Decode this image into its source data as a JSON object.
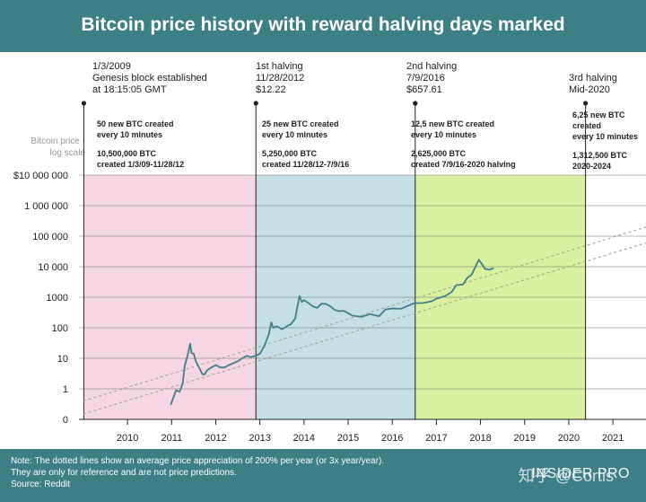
{
  "header": {
    "title": "Bitcoin price history with reward halving days marked"
  },
  "y_axis_note": {
    "line1": "Bitcoin price -",
    "line2": "log scale"
  },
  "events": [
    {
      "lines": [
        "1/3/2009",
        "Genesis block established",
        "at 18:15:05 GMT"
      ]
    },
    {
      "lines": [
        "1st halving",
        "11/28/2012",
        "$12.22"
      ]
    },
    {
      "lines": [
        "2nd halving",
        "7/9/2016",
        "$657.61"
      ]
    },
    {
      "lines": [
        "3rd halving",
        "Mid-2020"
      ]
    }
  ],
  "periods": [
    {
      "info": [
        "50 new BTC created",
        "every 10 minutes"
      ],
      "info2": [
        "10,500,000 BTC",
        "created 1/3/09-11/28/12"
      ],
      "color": "#f6d6e2"
    },
    {
      "info": [
        "25 new BTC created",
        "every 10 minutes"
      ],
      "info2": [
        "5,250,000 BTC",
        "created 11/28/12-7/9/16"
      ],
      "color": "#c5dfe6"
    },
    {
      "info": [
        "12,5 new BTC created",
        "every 10 minutes"
      ],
      "info2": [
        "2,625,000 BTC",
        "created 7/9/16-2020 halving"
      ],
      "color": "#d9f0a0"
    },
    {
      "info": [
        "6,25 new BTC",
        "created",
        "every 10 minutes"
      ],
      "info2": [
        "1,312,500 BTC",
        "2020-2024"
      ],
      "color": "#ffffff"
    }
  ],
  "footer": {
    "note1": "Note: The dotted lines show an average price appreciation of 200% per year (or 3x year/year).",
    "note2": "They are only for reference and are not price predictions.",
    "source": "Source: Reddit",
    "brand": "INSIDER PRO",
    "watermark": "知乎 @Cortis"
  },
  "colors": {
    "header": "#3d7f86",
    "price_line": "#3f7f86",
    "trend_line": "#9aa88a"
  },
  "chart_data": {
    "type": "line",
    "title": "Bitcoin price history with reward halving days marked",
    "ylabel": "Bitcoin price - log scale",
    "y_scale": "log",
    "yticks": [
      {
        "value": 0,
        "label": "0"
      },
      {
        "value": 1,
        "label": "1"
      },
      {
        "value": 10,
        "label": "10"
      },
      {
        "value": 100,
        "label": "100"
      },
      {
        "value": 1000,
        "label": "1000"
      },
      {
        "value": 10000,
        "label": "10 000"
      },
      {
        "value": 100000,
        "label": "100 000"
      },
      {
        "value": 1000000,
        "label": "1 000 000"
      },
      {
        "value": 10000000,
        "label": "$10 000 000"
      }
    ],
    "xticks": [
      "2010",
      "2011",
      "2012",
      "2013",
      "2014",
      "2015",
      "2016",
      "2017",
      "2018",
      "2019",
      "2020",
      "2021"
    ],
    "xlim": [
      2008.9,
      2021.75
    ],
    "grid": true,
    "halving_dates": [
      2009.01,
      2012.91,
      2016.52,
      2020.38
    ],
    "series": [
      {
        "name": "",
        "x": [
          2010.98,
          2011.1,
          2011.18,
          2011.25,
          2011.3,
          2011.36,
          2011.42,
          2011.45,
          2011.5,
          2011.55,
          2011.62,
          2011.7,
          2011.75,
          2011.8,
          2011.9,
          2012.0,
          2012.1,
          2012.2,
          2012.3,
          2012.4,
          2012.5,
          2012.6,
          2012.7,
          2012.8,
          2012.9,
          2013.0,
          2013.1,
          2013.2,
          2013.26,
          2013.3,
          2013.35,
          2013.4,
          2013.5,
          2013.6,
          2013.7,
          2013.8,
          2013.85,
          2013.9,
          2013.95,
          2014.0,
          2014.1,
          2014.2,
          2014.3,
          2014.4,
          2014.5,
          2014.6,
          2014.7,
          2014.8,
          2014.9,
          2015.0,
          2015.1,
          2015.2,
          2015.3,
          2015.5,
          2015.7,
          2015.85,
          2016.0,
          2016.2,
          2016.4,
          2016.5,
          2016.7,
          2016.9,
          2017.0,
          2017.2,
          2017.35,
          2017.45,
          2017.6,
          2017.7,
          2017.8,
          2017.9,
          2017.96,
          2018.02,
          2018.1,
          2018.2,
          2018.3
        ],
        "y": [
          0.3,
          0.9,
          0.8,
          1.5,
          6,
          12,
          30,
          15,
          14,
          8,
          5,
          3,
          3,
          4,
          5,
          6,
          5,
          5,
          6,
          7,
          8,
          10,
          12,
          11,
          12,
          14,
          25,
          60,
          150,
          100,
          110,
          110,
          90,
          110,
          130,
          200,
          500,
          1100,
          700,
          800,
          650,
          500,
          450,
          620,
          600,
          500,
          380,
          350,
          360,
          300,
          250,
          240,
          230,
          280,
          240,
          400,
          430,
          420,
          560,
          640,
          650,
          740,
          900,
          1100,
          1500,
          2500,
          2600,
          4300,
          5500,
          11000,
          17000,
          13000,
          8500,
          8000,
          9000
        ]
      },
      {
        "name": "",
        "x": [
          2009.0,
          2021.75
        ],
        "y": [
          0.4,
          200000
        ]
      },
      {
        "name": "",
        "x": [
          2009.0,
          2021.75
        ],
        "y": [
          0.15,
          60000
        ]
      }
    ]
  }
}
